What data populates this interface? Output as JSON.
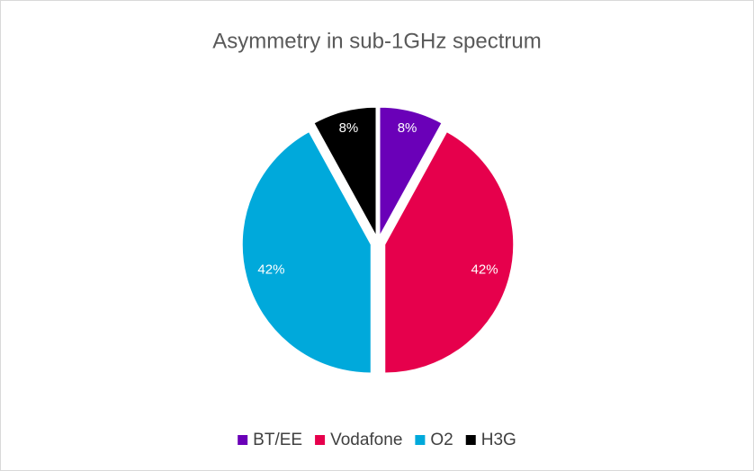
{
  "chart_data": {
    "type": "pie",
    "title": "Asymmetry in sub-1GHz spectrum",
    "categories": [
      "BT/EE",
      "Vodafone",
      "O2",
      "H3G"
    ],
    "values": [
      8,
      42,
      42,
      8
    ],
    "value_labels": [
      "8%",
      "42%",
      "42%",
      "8%"
    ],
    "colors": [
      "#6a00b8",
      "#e6004c",
      "#00a9db",
      "#000000"
    ],
    "legend": "bottom"
  }
}
